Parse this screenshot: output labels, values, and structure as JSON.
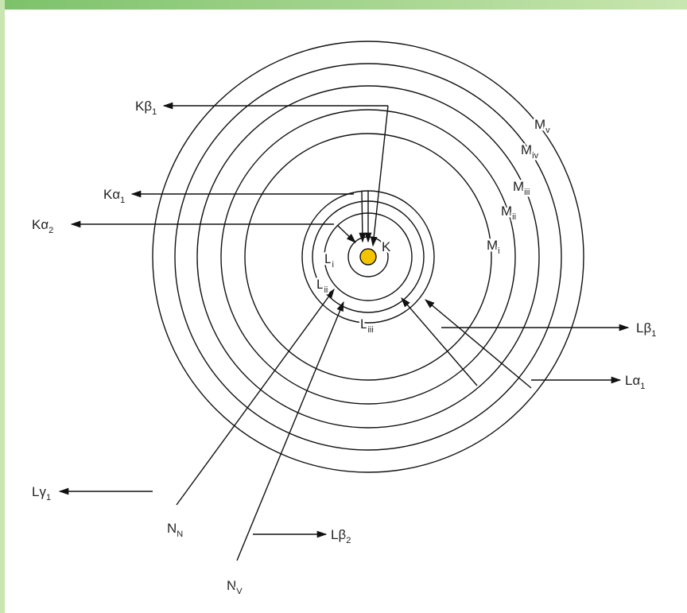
{
  "labels": [
    {
      "main": "Kβ",
      "sub": "1"
    },
    {
      "main": "Kα",
      "sub": "1"
    },
    {
      "main": "Kα",
      "sub": "2"
    },
    {
      "main": "Lβ",
      "sub": "1"
    },
    {
      "main": "Lα",
      "sub": "1"
    },
    {
      "main": "Lγ",
      "sub": "1"
    },
    {
      "main": "Lβ",
      "sub": "2"
    },
    {
      "main": "N",
      "sub": "N"
    },
    {
      "main": "N",
      "sub": "V"
    },
    {
      "main": "M",
      "sub": "v"
    },
    {
      "main": "M",
      "sub": "iv"
    },
    {
      "main": "M",
      "sub": "iii"
    },
    {
      "main": "M",
      "sub": "ii"
    },
    {
      "main": "M",
      "sub": "i"
    },
    {
      "main": "K"
    },
    {
      "main": "L",
      "sub": "i"
    },
    {
      "main": "L",
      "sub": "ii"
    },
    {
      "main": "L",
      "sub": "iii"
    }
  ]
}
